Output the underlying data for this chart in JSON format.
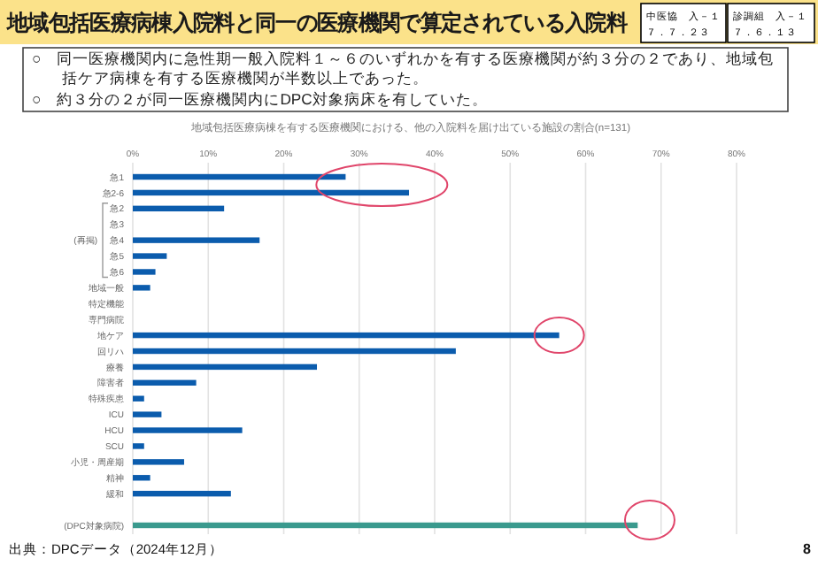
{
  "chart_data": {
    "type": "bar",
    "orientation": "horizontal",
    "title": "地域包括医療病棟入院料と同一の医療機関で算定されている入院料",
    "subtitle": "地域包括医療病棟を有する医療機関における、他の入院料を届け出ている施設の割合(n=131)",
    "categories": [
      "急1",
      "急2-6",
      "急2",
      "急3",
      "急4",
      "急5",
      "急6",
      "地域一般",
      "特定機能",
      "専門病院",
      "地ケア",
      "回リハ",
      "療養",
      "障害者",
      "特殊疾患",
      "ICU",
      "HCU",
      "SCU",
      "小児・周産期",
      "精神",
      "緩和",
      null,
      "(DPC対象病院)"
    ],
    "values": [
      28.2,
      36.6,
      12.1,
      0,
      16.8,
      4.5,
      3.0,
      2.3,
      0,
      0,
      56.5,
      42.8,
      24.4,
      8.4,
      1.5,
      3.8,
      14.5,
      1.5,
      6.8,
      2.3,
      13.0,
      null,
      66.9
    ],
    "colors": [
      "#0b5cad",
      "#0b5cad",
      "#0b5cad",
      "#0b5cad",
      "#0b5cad",
      "#0b5cad",
      "#0b5cad",
      "#0b5cad",
      "#0b5cad",
      "#0b5cad",
      "#0b5cad",
      "#0b5cad",
      "#0b5cad",
      "#0b5cad",
      "#0b5cad",
      "#0b5cad",
      "#0b5cad",
      "#0b5cad",
      "#0b5cad",
      "#0b5cad",
      "#0b5cad",
      "#0b5cad",
      "#3a9a8e"
    ],
    "xlim": [
      0,
      80
    ],
    "xticks": [
      {
        "value": 0,
        "label": "0%"
      },
      {
        "value": 10,
        "label": "10%"
      },
      {
        "value": 20,
        "label": "20%"
      },
      {
        "value": 30,
        "label": "30%"
      },
      {
        "value": 40,
        "label": "40%"
      },
      {
        "value": 50,
        "label": "50%"
      },
      {
        "value": 60,
        "label": "60%"
      },
      {
        "value": 70,
        "label": "70%"
      },
      {
        "value": 80,
        "label": "80%"
      }
    ],
    "grid": "x",
    "annotations": [
      "中医協　入－１",
      "７．７．２３",
      "診調組　入－１",
      "７．６．１３",
      "○　同一医療機関内に急性期一般入院料１～６のいずれかを有する医療機関が約３分の２であり、地域包括ケア病棟を有する医療機関が半数以上であった。",
      "○　約３分の２が同一医療機関内にDPC対象病床を有していた。",
      "(再掲)",
      "出典：DPCデータ（2024年12月）",
      "8"
    ]
  }
}
